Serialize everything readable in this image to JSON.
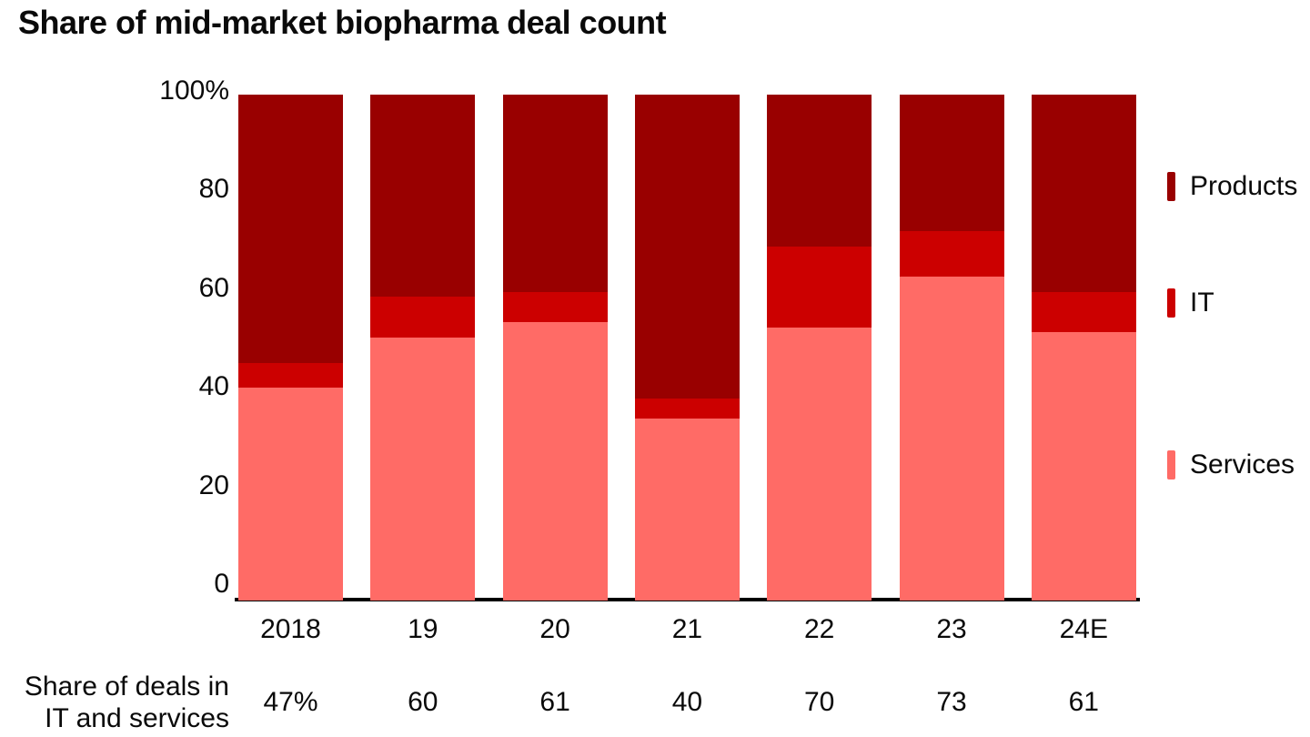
{
  "title": "Share of mid-market biopharma deal count",
  "colors": {
    "products": "#990000",
    "it": "#CC0000",
    "services": "#FF6B66",
    "axis": "#000000",
    "background": "#FFFFFF"
  },
  "chart_data": {
    "type": "bar",
    "stacked": true,
    "unit": "%",
    "title": "Share of mid-market biopharma deal count",
    "categories": [
      "2018",
      "19",
      "20",
      "21",
      "22",
      "23",
      "24E"
    ],
    "series": [
      {
        "name": "Services",
        "color": "#FF6B66",
        "values": [
          42,
          52,
          55,
          36,
          54,
          64,
          53
        ]
      },
      {
        "name": "IT",
        "color": "#CC0000",
        "values": [
          5,
          8,
          6,
          4,
          16,
          9,
          8
        ]
      },
      {
        "name": "Products",
        "color": "#990000",
        "values": [
          53,
          40,
          39,
          60,
          30,
          27,
          39
        ]
      }
    ],
    "ylim": [
      0,
      100
    ],
    "ytick_values": [
      100,
      80,
      60,
      40,
      20,
      0
    ],
    "ytick_labels": [
      "100%",
      "80",
      "60",
      "40",
      "20",
      "0"
    ],
    "grid": false,
    "legend_position": "right",
    "legend": [
      "Products",
      "IT",
      "Services"
    ],
    "annotation_row": {
      "label_lines": [
        "Share of deals in",
        "IT and services"
      ],
      "values": [
        "47%",
        "60",
        "61",
        "40",
        "70",
        "73",
        "61"
      ]
    }
  }
}
